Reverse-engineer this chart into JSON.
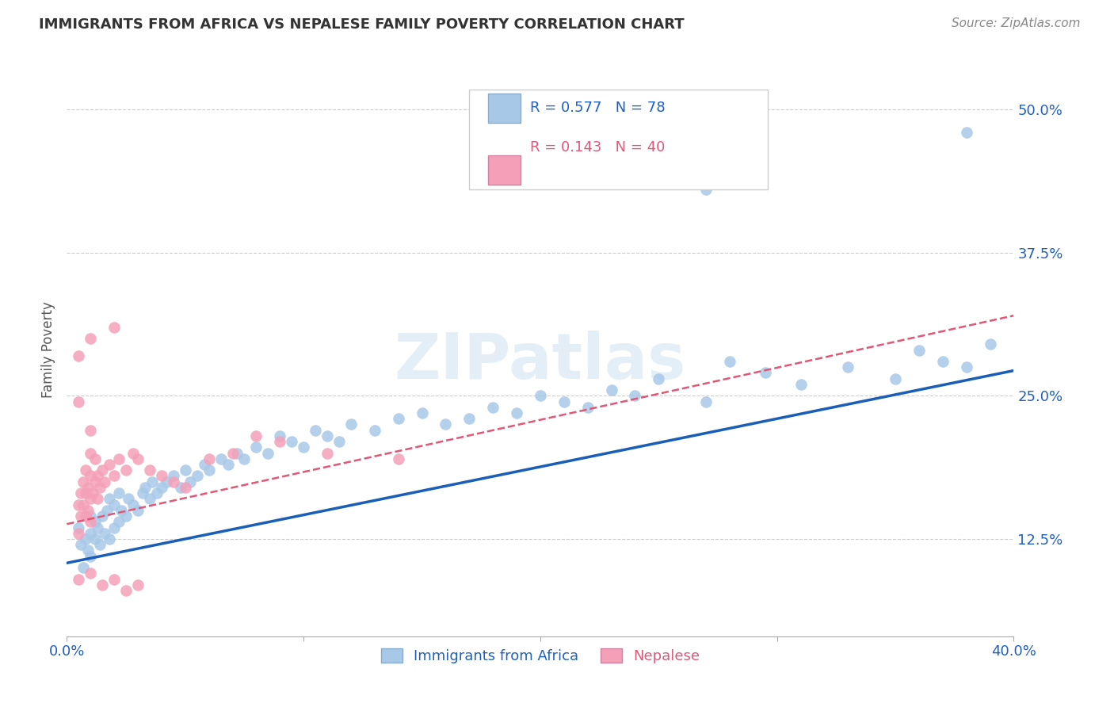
{
  "title": "IMMIGRANTS FROM AFRICA VS NEPALESE FAMILY POVERTY CORRELATION CHART",
  "source": "Source: ZipAtlas.com",
  "ylabel": "Family Poverty",
  "xlim": [
    0.0,
    0.4
  ],
  "ylim": [
    0.04,
    0.54
  ],
  "yticks": [
    0.125,
    0.25,
    0.375,
    0.5
  ],
  "ytick_labels": [
    "12.5%",
    "25.0%",
    "37.5%",
    "50.0%"
  ],
  "xticks": [
    0.0,
    0.1,
    0.2,
    0.3,
    0.4
  ],
  "xtick_labels": [
    "0.0%",
    "",
    "",
    "",
    "40.0%"
  ],
  "blue_color": "#a8c8e8",
  "pink_color": "#f4a0b8",
  "blue_line_color": "#1a5eb8",
  "pink_line_color": "#e05878",
  "watermark": "ZIPatlas",
  "africa_line_x": [
    0.0,
    0.4
  ],
  "africa_line_y": [
    0.104,
    0.272
  ],
  "nepal_line_x": [
    0.0,
    0.4
  ],
  "nepal_line_y": [
    0.138,
    0.32
  ],
  "africa_x": [
    0.005,
    0.006,
    0.007,
    0.008,
    0.009,
    0.01,
    0.01,
    0.01,
    0.012,
    0.012,
    0.013,
    0.014,
    0.015,
    0.016,
    0.017,
    0.018,
    0.018,
    0.02,
    0.02,
    0.022,
    0.022,
    0.023,
    0.025,
    0.026,
    0.028,
    0.03,
    0.032,
    0.033,
    0.035,
    0.036,
    0.038,
    0.04,
    0.042,
    0.045,
    0.048,
    0.05,
    0.052,
    0.055,
    0.058,
    0.06,
    0.065,
    0.068,
    0.072,
    0.075,
    0.08,
    0.085,
    0.09,
    0.095,
    0.1,
    0.105,
    0.11,
    0.115,
    0.12,
    0.13,
    0.14,
    0.15,
    0.16,
    0.17,
    0.18,
    0.19,
    0.2,
    0.21,
    0.22,
    0.23,
    0.24,
    0.25,
    0.27,
    0.28,
    0.295,
    0.31,
    0.33,
    0.35,
    0.36,
    0.37,
    0.38,
    0.39,
    0.27,
    0.38
  ],
  "africa_y": [
    0.135,
    0.12,
    0.1,
    0.125,
    0.115,
    0.13,
    0.145,
    0.11,
    0.14,
    0.125,
    0.135,
    0.12,
    0.145,
    0.13,
    0.15,
    0.125,
    0.16,
    0.135,
    0.155,
    0.14,
    0.165,
    0.15,
    0.145,
    0.16,
    0.155,
    0.15,
    0.165,
    0.17,
    0.16,
    0.175,
    0.165,
    0.17,
    0.175,
    0.18,
    0.17,
    0.185,
    0.175,
    0.18,
    0.19,
    0.185,
    0.195,
    0.19,
    0.2,
    0.195,
    0.205,
    0.2,
    0.215,
    0.21,
    0.205,
    0.22,
    0.215,
    0.21,
    0.225,
    0.22,
    0.23,
    0.235,
    0.225,
    0.23,
    0.24,
    0.235,
    0.25,
    0.245,
    0.24,
    0.255,
    0.25,
    0.265,
    0.245,
    0.28,
    0.27,
    0.26,
    0.275,
    0.265,
    0.29,
    0.28,
    0.275,
    0.295,
    0.43,
    0.48
  ],
  "nepal_x": [
    0.005,
    0.005,
    0.006,
    0.006,
    0.007,
    0.007,
    0.008,
    0.008,
    0.008,
    0.009,
    0.009,
    0.01,
    0.01,
    0.01,
    0.01,
    0.01,
    0.011,
    0.012,
    0.012,
    0.013,
    0.013,
    0.014,
    0.015,
    0.016,
    0.018,
    0.02,
    0.022,
    0.025,
    0.028,
    0.03,
    0.035,
    0.04,
    0.045,
    0.05,
    0.06,
    0.07,
    0.08,
    0.09,
    0.11,
    0.14
  ],
  "nepal_y": [
    0.13,
    0.155,
    0.145,
    0.165,
    0.155,
    0.175,
    0.145,
    0.165,
    0.185,
    0.15,
    0.17,
    0.14,
    0.16,
    0.18,
    0.2,
    0.22,
    0.165,
    0.175,
    0.195,
    0.16,
    0.18,
    0.17,
    0.185,
    0.175,
    0.19,
    0.18,
    0.195,
    0.185,
    0.2,
    0.195,
    0.185,
    0.18,
    0.175,
    0.17,
    0.195,
    0.2,
    0.215,
    0.21,
    0.2,
    0.195
  ],
  "nepal_outlier_x": [
    0.005,
    0.01,
    0.02,
    0.005,
    0.005,
    0.01,
    0.015,
    0.02,
    0.025,
    0.03
  ],
  "nepal_outlier_y": [
    0.285,
    0.3,
    0.31,
    0.245,
    0.09,
    0.095,
    0.085,
    0.09,
    0.08,
    0.085
  ]
}
